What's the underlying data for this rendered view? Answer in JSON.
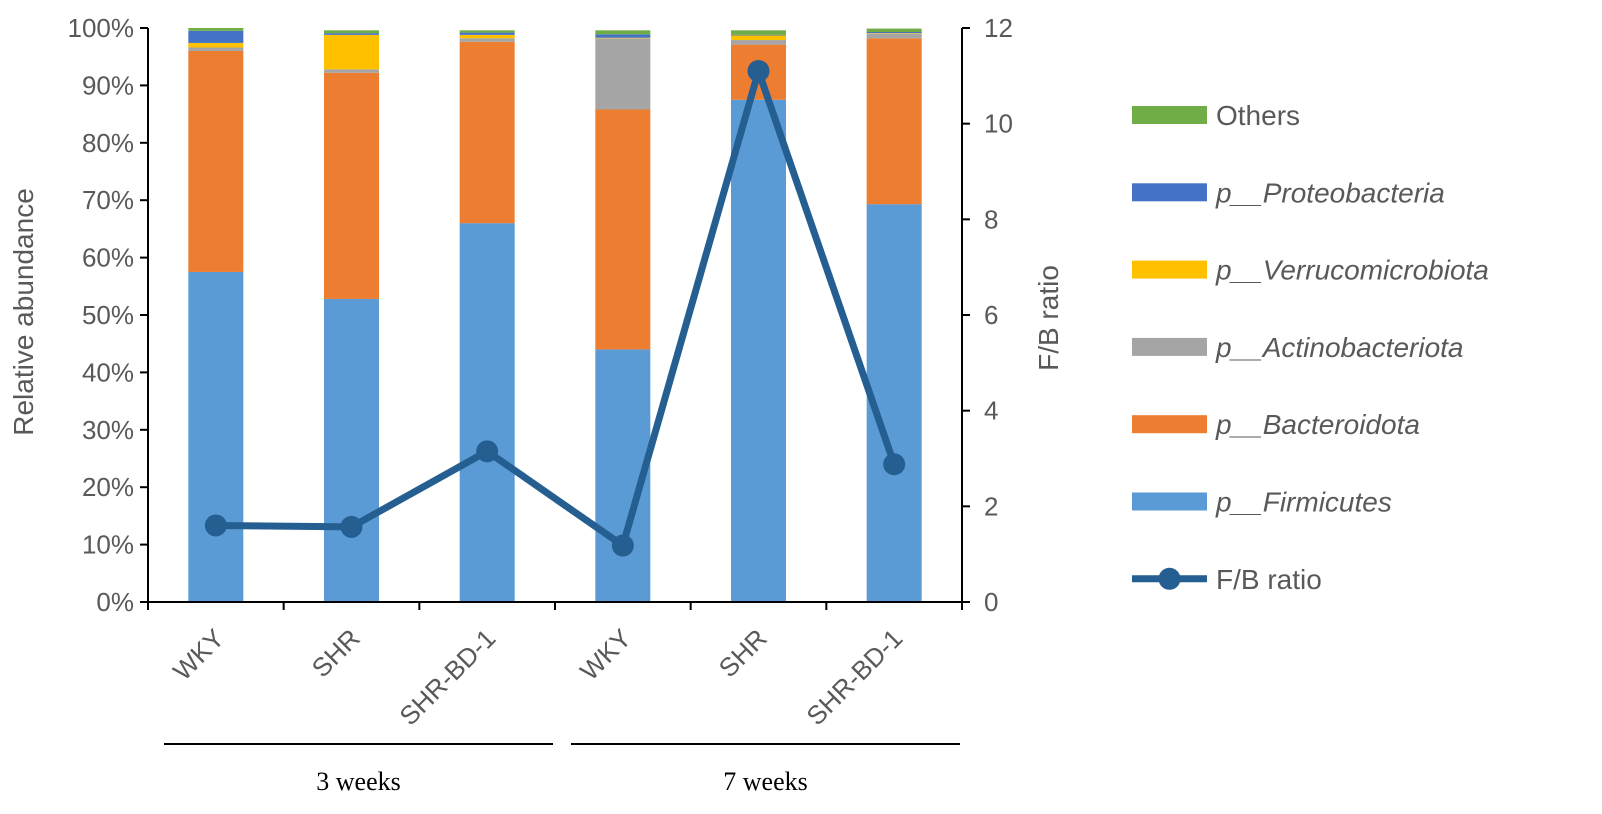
{
  "chart_data": {
    "type": "bar",
    "stacked": true,
    "categories": [
      "WKY",
      "SHR",
      "SHR-BD-1",
      "WKY",
      "SHR",
      "SHR-BD-1"
    ],
    "groups": [
      {
        "label": "3 weeks",
        "members": [
          0,
          1,
          2
        ]
      },
      {
        "label": "7 weeks",
        "members": [
          3,
          4,
          5
        ]
      }
    ],
    "ylabel": "Relative abundance",
    "y2label": "F/B ratio",
    "ylim": [
      0,
      100
    ],
    "y2lim": [
      0,
      12
    ],
    "yticks": [
      "0%",
      "10%",
      "20%",
      "30%",
      "40%",
      "50%",
      "60%",
      "70%",
      "80%",
      "90%",
      "100%"
    ],
    "y2ticks": [
      "0",
      "2",
      "4",
      "6",
      "8",
      "10",
      "12"
    ],
    "legend_position": "right",
    "series": [
      {
        "name": "p__Firmicutes",
        "color": "#5B9BD5",
        "values": [
          57.5,
          52.8,
          66.0,
          44.0,
          87.5,
          69.3
        ]
      },
      {
        "name": "p__Bacteroidota",
        "color": "#ED7D31",
        "values": [
          38.5,
          39.4,
          31.6,
          41.8,
          9.6,
          28.9
        ]
      },
      {
        "name": "p__Actinobacteriota",
        "color": "#A5A5A5",
        "values": [
          0.6,
          0.6,
          0.6,
          12.4,
          0.8,
          0.8
        ]
      },
      {
        "name": "p__Verrucomicrobiota",
        "color": "#FFC000",
        "values": [
          0.8,
          6.0,
          0.6,
          0.1,
          0.8,
          0.1
        ]
      },
      {
        "name": "p__Proteobacteria",
        "color": "#4472C4",
        "values": [
          2.1,
          0.3,
          0.4,
          0.6,
          0.1,
          0.2
        ]
      },
      {
        "name": "Others",
        "color": "#70AD47",
        "values": [
          0.5,
          0.5,
          0.4,
          0.7,
          0.8,
          0.6
        ]
      }
    ],
    "line": {
      "name": "F/B ratio",
      "color": "#255E91",
      "axis": "y2",
      "values": [
        1.6,
        1.57,
        3.15,
        1.18,
        11.1,
        2.88
      ]
    }
  }
}
